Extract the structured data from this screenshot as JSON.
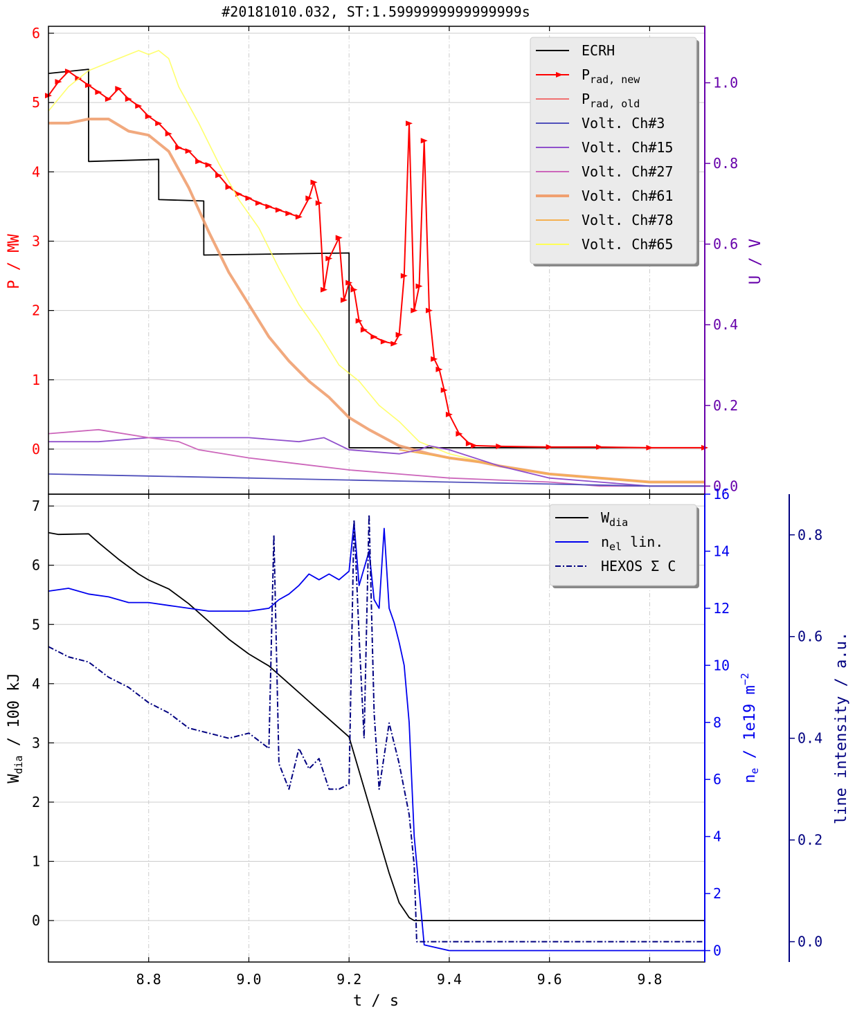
{
  "title": "#20181010.032, ST:1.5999999999999999s",
  "top_panel": {
    "ylabel_left": "P / MW",
    "ylabel_right": "U / V",
    "left_color": "#ff0000",
    "right_color": "#6600aa",
    "legend": [
      {
        "key": "ecrh",
        "label": "ECRH"
      },
      {
        "key": "prad_new",
        "label": "P",
        "sub": "rad, new"
      },
      {
        "key": "prad_old",
        "label": "P",
        "sub": "rad, old"
      },
      {
        "key": "ch3",
        "label": "Volt. Ch#3"
      },
      {
        "key": "ch15",
        "label": "Volt. Ch#15"
      },
      {
        "key": "ch27",
        "label": "Volt. Ch#27"
      },
      {
        "key": "ch61",
        "label": "Volt. Ch#61"
      },
      {
        "key": "ch78",
        "label": "Volt. Ch#78"
      },
      {
        "key": "ch65",
        "label": "Volt. Ch#65"
      }
    ]
  },
  "bottom_panel": {
    "ylabel_left_main": "W",
    "ylabel_left_sub": "dia",
    "ylabel_left_rest": " / 100 kJ",
    "ylabel_right1_main": "n",
    "ylabel_right1_sub": "e",
    "ylabel_right1_rest": " / 1e19 m",
    "ylabel_right1_sup": "−2",
    "ylabel_right2": "line intensity / a.u.",
    "right1_color": "#0000ee",
    "right2_color": "#000080",
    "legend": [
      {
        "key": "wdia",
        "label": "W",
        "sub": "dia",
        "rest": ""
      },
      {
        "key": "nel",
        "label": "n",
        "sub": "el",
        "rest": " lin."
      },
      {
        "key": "hexos",
        "label": "HEXOS Σ C",
        "sub": "",
        "rest": ""
      }
    ]
  },
  "xlabel": "t / s",
  "chart_data": [
    {
      "type": "line",
      "panel": "top",
      "xlim": [
        8.6,
        9.91
      ],
      "ylim": [
        -0.65,
        6.1
      ],
      "ylim_right": [
        -0.02,
        1.14
      ],
      "x_ticks": [
        "8.8",
        "9.0",
        "9.2",
        "9.4",
        "9.6",
        "9.8"
      ],
      "y_ticks": [
        "0",
        "1",
        "2",
        "3",
        "4",
        "5",
        "6"
      ],
      "y_ticks_right": [
        "0.0",
        "0.2",
        "0.4",
        "0.6",
        "0.8",
        "1.0"
      ],
      "grid": true,
      "legend_position": "top-right",
      "series": [
        {
          "key": "ecrh",
          "axis": "left",
          "color": "#000000",
          "x": [
            8.6,
            8.68,
            8.6801,
            8.82,
            8.8201,
            8.91,
            8.9101,
            9.2,
            9.2001,
            9.91
          ],
          "y": [
            5.42,
            5.48,
            4.15,
            4.18,
            3.6,
            3.58,
            2.8,
            2.83,
            0.02,
            0.02
          ]
        },
        {
          "key": "prad_new",
          "axis": "left",
          "color": "#ff0000",
          "x": [
            8.6,
            8.62,
            8.64,
            8.66,
            8.68,
            8.7,
            8.72,
            8.74,
            8.76,
            8.78,
            8.8,
            8.82,
            8.84,
            8.86,
            8.88,
            8.9,
            8.92,
            8.94,
            8.96,
            8.98,
            9.0,
            9.02,
            9.04,
            9.06,
            9.08,
            9.1,
            9.12,
            9.13,
            9.14,
            9.15,
            9.16,
            9.18,
            9.19,
            9.2,
            9.21,
            9.22,
            9.23,
            9.25,
            9.27,
            9.29,
            9.3,
            9.31,
            9.32,
            9.33,
            9.34,
            9.35,
            9.36,
            9.37,
            9.38,
            9.39,
            9.4,
            9.42,
            9.44,
            9.45,
            9.5,
            9.6,
            9.7,
            9.8,
            9.91
          ],
          "y": [
            5.1,
            5.3,
            5.45,
            5.35,
            5.25,
            5.15,
            5.05,
            5.2,
            5.05,
            4.95,
            4.8,
            4.7,
            4.55,
            4.35,
            4.3,
            4.15,
            4.1,
            3.95,
            3.78,
            3.68,
            3.62,
            3.55,
            3.5,
            3.45,
            3.4,
            3.35,
            3.62,
            3.85,
            3.55,
            2.3,
            2.75,
            3.05,
            2.15,
            2.4,
            2.3,
            1.85,
            1.72,
            1.62,
            1.55,
            1.52,
            1.65,
            2.5,
            4.7,
            2.0,
            2.35,
            4.45,
            2.0,
            1.3,
            1.15,
            0.85,
            0.5,
            0.22,
            0.08,
            0.05,
            0.04,
            0.03,
            0.03,
            0.02,
            0.02
          ]
        },
        {
          "key": "ch65",
          "axis": "right",
          "color": "#ffff55",
          "x": [
            8.6,
            8.64,
            8.68,
            8.72,
            8.76,
            8.78,
            8.8,
            8.82,
            8.84,
            8.86,
            8.9,
            8.94,
            8.98,
            9.02,
            9.06,
            9.1,
            9.14,
            9.18,
            9.22,
            9.26,
            9.3,
            9.34,
            9.4,
            9.5,
            9.6,
            9.7,
            9.8,
            9.91
          ],
          "y": [
            0.93,
            0.99,
            1.03,
            1.05,
            1.07,
            1.08,
            1.07,
            1.08,
            1.06,
            0.99,
            0.9,
            0.8,
            0.71,
            0.64,
            0.54,
            0.45,
            0.38,
            0.3,
            0.26,
            0.2,
            0.16,
            0.11,
            0.08,
            0.05,
            0.03,
            0.02,
            0.01,
            0.01
          ]
        },
        {
          "key": "ch61",
          "axis": "right",
          "color": "#f0a070",
          "x": [
            8.6,
            8.64,
            8.68,
            8.72,
            8.76,
            8.8,
            8.82,
            8.84,
            8.88,
            8.92,
            8.96,
            9.0,
            9.04,
            9.08,
            9.12,
            9.16,
            9.2,
            9.24,
            9.3,
            9.36,
            9.4,
            9.46,
            9.5,
            9.6,
            9.7,
            9.8,
            9.91
          ],
          "y": [
            0.9,
            0.9,
            0.91,
            0.91,
            0.88,
            0.87,
            0.85,
            0.83,
            0.74,
            0.63,
            0.53,
            0.45,
            0.37,
            0.31,
            0.26,
            0.22,
            0.17,
            0.14,
            0.1,
            0.08,
            0.07,
            0.06,
            0.05,
            0.03,
            0.02,
            0.01,
            0.01
          ]
        },
        {
          "key": "ch78",
          "axis": "right",
          "color": "#f5b050",
          "x": [
            9.3,
            9.4,
            9.46,
            9.5,
            9.6,
            9.7,
            9.8,
            9.91
          ],
          "y": [
            0.09,
            0.07,
            0.06,
            0.05,
            0.03,
            0.02,
            0.01,
            0.01
          ]
        },
        {
          "key": "ch15",
          "axis": "right",
          "color": "#9050cc",
          "x": [
            8.6,
            8.7,
            8.8,
            8.9,
            9.0,
            9.1,
            9.15,
            9.2,
            9.3,
            9.34,
            9.36,
            9.4,
            9.5,
            9.6,
            9.7,
            9.8,
            9.91
          ],
          "y": [
            0.11,
            0.11,
            0.12,
            0.12,
            0.12,
            0.11,
            0.12,
            0.09,
            0.08,
            0.09,
            0.1,
            0.09,
            0.05,
            0.02,
            0.01,
            0.0,
            0.0
          ]
        },
        {
          "key": "ch27",
          "axis": "right",
          "color": "#cc66bb",
          "x": [
            8.6,
            8.7,
            8.8,
            8.86,
            8.9,
            9.0,
            9.1,
            9.2,
            9.3,
            9.4,
            9.5,
            9.6,
            9.7,
            9.8,
            9.91
          ],
          "y": [
            0.13,
            0.14,
            0.12,
            0.11,
            0.09,
            0.07,
            0.055,
            0.04,
            0.03,
            0.02,
            0.015,
            0.01,
            0.0,
            0.0,
            0.0
          ]
        },
        {
          "key": "ch3",
          "axis": "right",
          "color": "#5050bb",
          "x": [
            8.6,
            8.8,
            9.0,
            9.2,
            9.4,
            9.6,
            9.8,
            9.91
          ],
          "y": [
            0.03,
            0.025,
            0.02,
            0.015,
            0.01,
            0.005,
            0.0,
            0.0
          ]
        },
        {
          "key": "prad_old",
          "axis": "left",
          "color": "#f07070",
          "x": [],
          "y": []
        }
      ]
    },
    {
      "type": "line",
      "panel": "bottom",
      "xlim": [
        8.6,
        9.91
      ],
      "ylim": [
        -0.7,
        7.2
      ],
      "ylim_right": [
        -0.4,
        16.0
      ],
      "ylim_right2": [
        -0.04,
        0.88
      ],
      "x_ticks": [
        "8.8",
        "9.0",
        "9.2",
        "9.4",
        "9.6",
        "9.8"
      ],
      "y_ticks": [
        "0",
        "1",
        "2",
        "3",
        "4",
        "5",
        "6",
        "7"
      ],
      "y_ticks_right": [
        "0",
        "2",
        "4",
        "6",
        "8",
        "10",
        "12",
        "14",
        "16"
      ],
      "y_ticks_right2": [
        "0.0",
        "0.2",
        "0.4",
        "0.6",
        "0.8"
      ],
      "grid": true,
      "legend_position": "top-right",
      "series": [
        {
          "key": "wdia",
          "axis": "left",
          "color": "#000000",
          "x": [
            8.6,
            8.62,
            8.68,
            8.7,
            8.74,
            8.78,
            8.8,
            8.84,
            8.88,
            8.92,
            8.96,
            9.0,
            9.04,
            9.08,
            9.12,
            9.16,
            9.2,
            9.24,
            9.28,
            9.3,
            9.32,
            9.33,
            9.91
          ],
          "y": [
            6.55,
            6.52,
            6.53,
            6.38,
            6.1,
            5.85,
            5.75,
            5.6,
            5.35,
            5.05,
            4.75,
            4.5,
            4.3,
            4.0,
            3.7,
            3.4,
            3.1,
            1.95,
            0.8,
            0.3,
            0.05,
            0.0,
            0.0
          ]
        },
        {
          "key": "nel",
          "axis": "right1",
          "color": "#0000ee",
          "x": [
            8.6,
            8.64,
            8.68,
            8.72,
            8.76,
            8.8,
            8.84,
            8.88,
            8.92,
            8.96,
            9.0,
            9.04,
            9.06,
            9.08,
            9.1,
            9.12,
            9.14,
            9.16,
            9.18,
            9.2,
            9.21,
            9.22,
            9.24,
            9.25,
            9.26,
            9.27,
            9.28,
            9.29,
            9.3,
            9.31,
            9.32,
            9.33,
            9.35,
            9.4,
            9.5,
            9.91
          ],
          "y": [
            12.6,
            12.7,
            12.5,
            12.4,
            12.2,
            12.2,
            12.1,
            12.0,
            11.9,
            11.9,
            11.9,
            12.0,
            12.3,
            12.5,
            12.8,
            13.2,
            13.0,
            13.2,
            13.0,
            13.3,
            15.0,
            12.8,
            14.0,
            12.3,
            12.0,
            14.8,
            12.0,
            11.5,
            10.8,
            10.0,
            8.0,
            4.0,
            0.2,
            0.0,
            0.0,
            0.0
          ]
        },
        {
          "key": "hexos",
          "axis": "right2",
          "color": "#000080",
          "x": [
            8.6,
            8.64,
            8.68,
            8.72,
            8.76,
            8.8,
            8.84,
            8.88,
            8.92,
            8.96,
            9.0,
            9.04,
            9.05,
            9.06,
            9.08,
            9.1,
            9.12,
            9.14,
            9.16,
            9.18,
            9.2,
            9.21,
            9.22,
            9.23,
            9.24,
            9.25,
            9.26,
            9.28,
            9.3,
            9.32,
            9.33,
            9.335,
            9.91
          ],
          "y": [
            0.58,
            0.56,
            0.55,
            0.52,
            0.5,
            0.47,
            0.45,
            0.42,
            0.41,
            0.4,
            0.41,
            0.38,
            0.8,
            0.35,
            0.3,
            0.38,
            0.34,
            0.36,
            0.3,
            0.3,
            0.31,
            0.83,
            0.6,
            0.4,
            0.84,
            0.45,
            0.3,
            0.43,
            0.35,
            0.25,
            0.15,
            0.0,
            0.0
          ]
        }
      ]
    }
  ]
}
